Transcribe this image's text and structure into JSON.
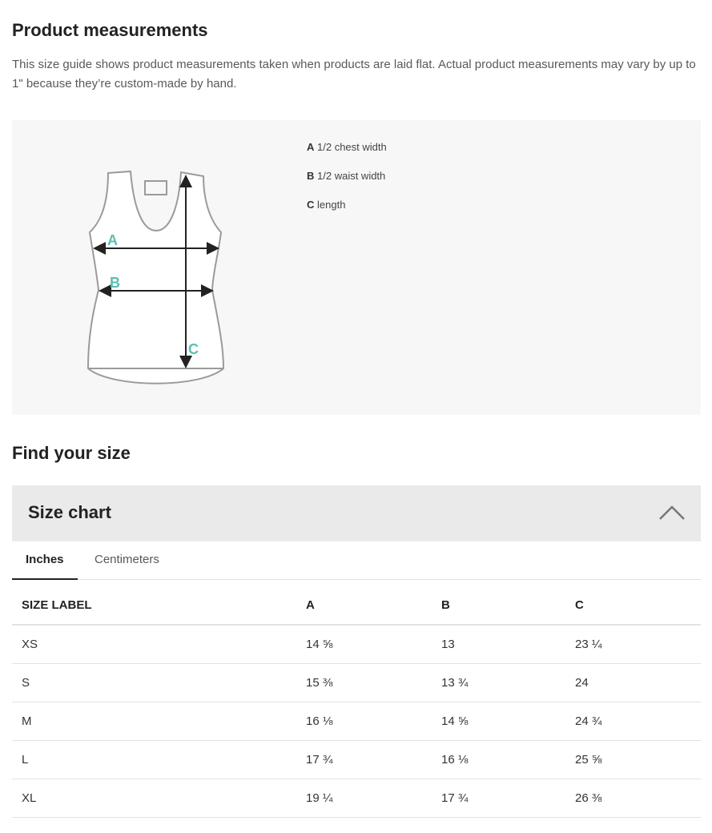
{
  "measurements": {
    "title": "Product measurements",
    "description": "This size guide shows product measurements taken when products are laid flat. Actual product measurements may vary by up to 1\" because they’re custom-made by hand.",
    "diagram_labels": [
      "A",
      "B",
      "C"
    ],
    "accent_color": "#5cbdb0",
    "legend": [
      {
        "key": "A",
        "label": "1/2 chest width"
      },
      {
        "key": "B",
        "label": "1/2 waist width"
      },
      {
        "key": "C",
        "label": "length"
      }
    ]
  },
  "find_size": {
    "title": "Find your size"
  },
  "size_chart": {
    "title": "Size chart",
    "toggle_icon": "chevron-up-icon",
    "tabs": [
      {
        "label": "Inches",
        "active": true
      },
      {
        "label": "Centimeters",
        "active": false
      }
    ],
    "columns": [
      "SIZE LABEL",
      "A",
      "B",
      "C"
    ],
    "rows": [
      [
        "XS",
        "14 ⅝",
        "13",
        "23 ¼"
      ],
      [
        "S",
        "15 ⅜",
        "13 ¾",
        "24"
      ],
      [
        "M",
        "16 ⅛",
        "14 ⅝",
        "24 ¾"
      ],
      [
        "L",
        "17 ¾",
        "16 ⅛",
        "25 ⅝"
      ],
      [
        "XL",
        "19 ¼",
        "17 ¾",
        "26 ⅜"
      ]
    ]
  }
}
